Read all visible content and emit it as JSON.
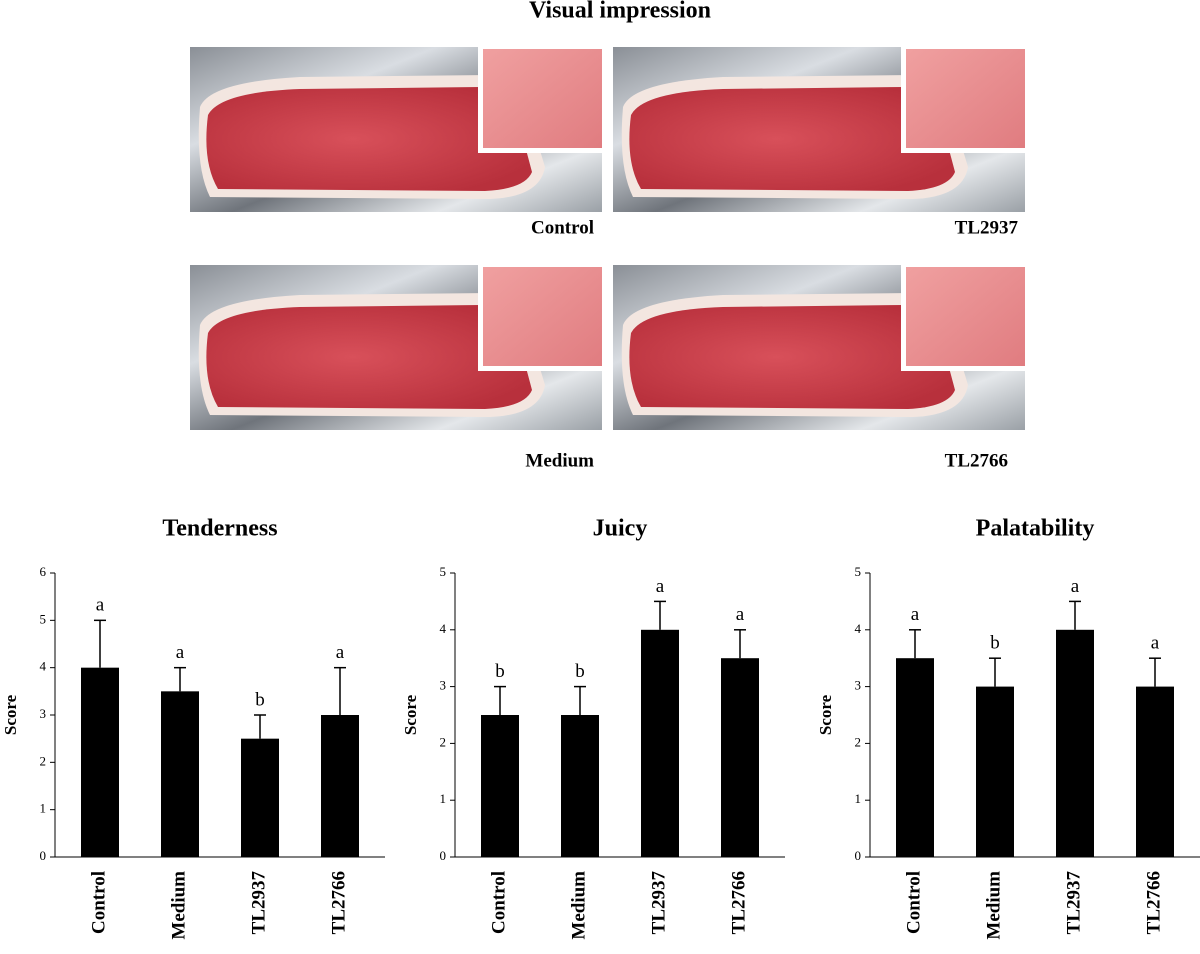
{
  "photos": {
    "title": "Visual impression",
    "labels": [
      "Control",
      "TL2937",
      "Medium",
      "TL2766"
    ]
  },
  "chart_data": [
    {
      "type": "bar",
      "title": "Tenderness",
      "y_label": "Score",
      "categories": [
        "Control",
        "Medium",
        "TL2937",
        "TL2766"
      ],
      "values": [
        4,
        3.5,
        2.5,
        3
      ],
      "errors": [
        1,
        0.5,
        0.5,
        1
      ],
      "annotations": [
        "a",
        "a",
        "b",
        "a"
      ],
      "color": "#000000",
      "ylim": [
        0,
        6
      ],
      "yticks": [
        0,
        1,
        2,
        3,
        4,
        5,
        6
      ]
    },
    {
      "type": "bar",
      "title": "Juicy",
      "y_label": "Score",
      "categories": [
        "Control",
        "Medium",
        "TL2937",
        "TL2766"
      ],
      "values": [
        2.5,
        2.5,
        4,
        3.5
      ],
      "errors": [
        0.5,
        0.5,
        0.5,
        0.5
      ],
      "annotations": [
        "b",
        "b",
        "a",
        "a"
      ],
      "color": "#000000",
      "ylim": [
        0,
        5
      ],
      "yticks": [
        0,
        1,
        2,
        3,
        4,
        5
      ]
    },
    {
      "type": "bar",
      "title": "Palatability",
      "y_label": "Score",
      "categories": [
        "Control",
        "Medium",
        "TL2937",
        "TL2766"
      ],
      "values": [
        3.5,
        3,
        4,
        3
      ],
      "errors": [
        0.5,
        0.5,
        0.5,
        0.5
      ],
      "annotations": [
        "a",
        "b",
        "a",
        "a"
      ],
      "color": "#000000",
      "ylim": [
        0,
        5
      ],
      "yticks": [
        0,
        1,
        2,
        3,
        4,
        5
      ]
    }
  ]
}
